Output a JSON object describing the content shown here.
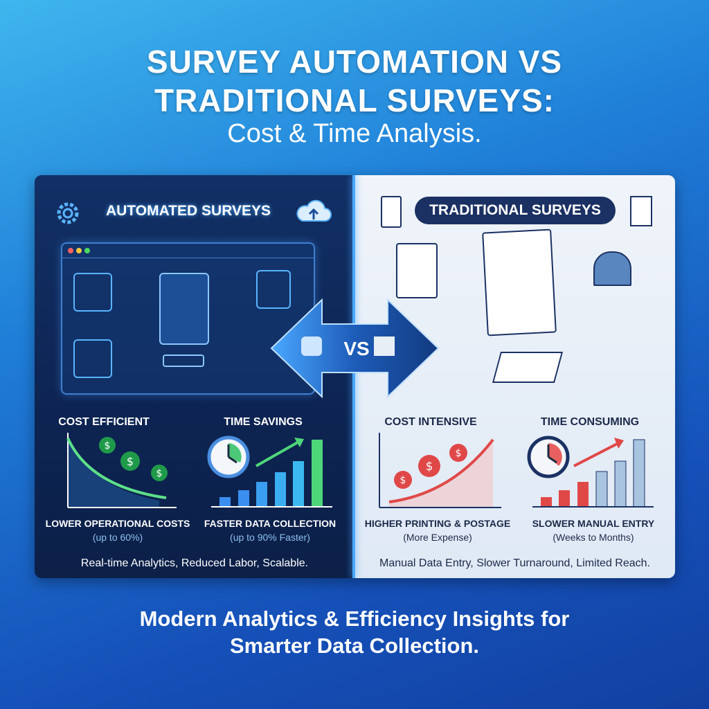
{
  "title": {
    "line1": "SURVEY AUTOMATION VS",
    "line2": "TRADITIONAL SURVEYS:",
    "line3": "Cost & Time Analysis."
  },
  "automated": {
    "header": "AUTOMATED SURVEYS",
    "icons": [
      "gear-icon",
      "cloud-upload-icon",
      "robot-arm-icon",
      "document-edit-icon",
      "form-icon",
      "server-icon"
    ],
    "cost": {
      "title": "COST EFFICIENT",
      "label": "LOWER OPERATIONAL COSTS",
      "note": "(up to 60%)"
    },
    "time": {
      "title": "TIME SAVINGS",
      "label": "FASTER DATA COLLECTION",
      "note": "(up to 90% Faster)"
    },
    "summary": "Real-time Analytics, Reduced Labor, Scalable.",
    "accent": "#3ddc84"
  },
  "vs": {
    "label": "VS"
  },
  "traditional": {
    "header": "TRADITIONAL SURVEYS",
    "icons": [
      "clipboard-checklist-icon",
      "document-icon",
      "clipboard-pen-icon",
      "handwriting-form-icon",
      "mailbox-icon",
      "paper-stack-icon"
    ],
    "cost": {
      "title": "COST INTENSIVE",
      "label": "HIGHER PRINTING & POSTAGE",
      "note": "(More Expense)"
    },
    "time": {
      "title": "TIME CONSUMING",
      "label": "SLOWER MANUAL ENTRY",
      "note": "(Weeks to Months)"
    },
    "summary": "Manual Data Entry, Slower Turnaround, Limited Reach.",
    "accent": "#e04848"
  },
  "footer": {
    "line1": "Modern Analytics & Efficiency Insights for",
    "line2": "Smarter Data Collection."
  }
}
